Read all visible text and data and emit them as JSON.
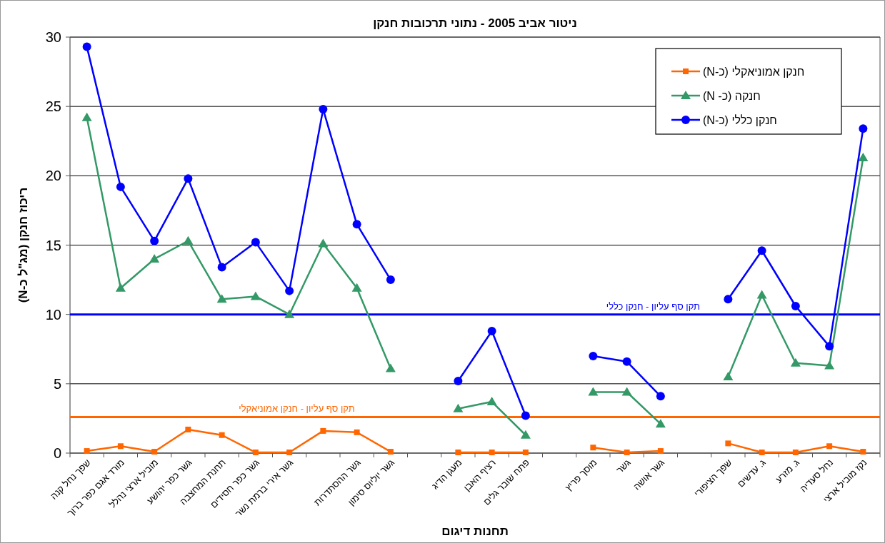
{
  "chart_data": {
    "type": "line",
    "title": "ניטור אביב 2005 - נתוני תרכובות חנקן",
    "xlabel": "תחנות דיגום",
    "ylabel": "ריכוז חנקן (מג\"ל כ-N)",
    "categories": [
      "שפך נחל קנה",
      "מורד אגם כפר ברוך",
      "מוביל ארצי נהלל",
      "גשר כפר יהושע",
      "תחנת המחצבה",
      "גשר כפר חסידים",
      "גשר אירי ברמת נשר",
      null,
      "גשר ההסתדרות",
      "גשר יוליוס סימון",
      null,
      "מעגן הדיג",
      "רציף האבן",
      "פתח שובר גלים",
      null,
      "מוסך פריץ",
      "גשר",
      "גשר אושה",
      null,
      "שפך הציפורי",
      "ג. עדשים",
      "ג. מזרע",
      "נחל סעדיה",
      "נקז מוביל ארצי"
    ],
    "series": [
      {
        "name": "חנקן אמוניאקלי (כ-N)",
        "color": "#ff6600",
        "marker": "square",
        "values": [
          0.15,
          0.5,
          0.1,
          1.7,
          1.3,
          0.05,
          0.05,
          1.6,
          1.5,
          0.1,
          null,
          0.05,
          0.05,
          0.05,
          null,
          0.4,
          0.05,
          0.15,
          null,
          0.7,
          0.05,
          0.05,
          0.5,
          0.1
        ]
      },
      {
        "name": "חנקה (כ- N)",
        "color": "#339966",
        "marker": "triangle",
        "values": [
          24.2,
          11.9,
          14.0,
          15.3,
          11.1,
          11.3,
          10.0,
          15.1,
          11.9,
          6.1,
          null,
          3.2,
          3.7,
          1.3,
          null,
          4.4,
          4.4,
          2.1,
          null,
          5.5,
          11.4,
          6.5,
          6.3,
          21.3
        ]
      },
      {
        "name": "חנקן כללי (כ-N)",
        "color": "#0000ff",
        "marker": "circle",
        "values": [
          29.3,
          19.2,
          15.3,
          19.8,
          13.4,
          15.2,
          11.7,
          24.8,
          16.5,
          12.5,
          null,
          5.2,
          8.8,
          2.7,
          null,
          7.0,
          6.6,
          4.1,
          null,
          11.1,
          14.6,
          10.6,
          7.7,
          23.4
        ]
      }
    ],
    "ylim": [
      0,
      30
    ],
    "yticks": [
      0,
      5,
      10,
      15,
      20,
      25,
      30
    ],
    "grid": "y",
    "legend": "top right",
    "ref_lines": [
      {
        "axis": "y",
        "value": 10,
        "label": "תקן סף עליון -  חנקן כללי",
        "color": "#0000ff"
      },
      {
        "axis": "y",
        "value": 2.6,
        "label": "תקן סף עליון - חנקן אמוניאקלי",
        "color": "#ff6600"
      }
    ]
  }
}
